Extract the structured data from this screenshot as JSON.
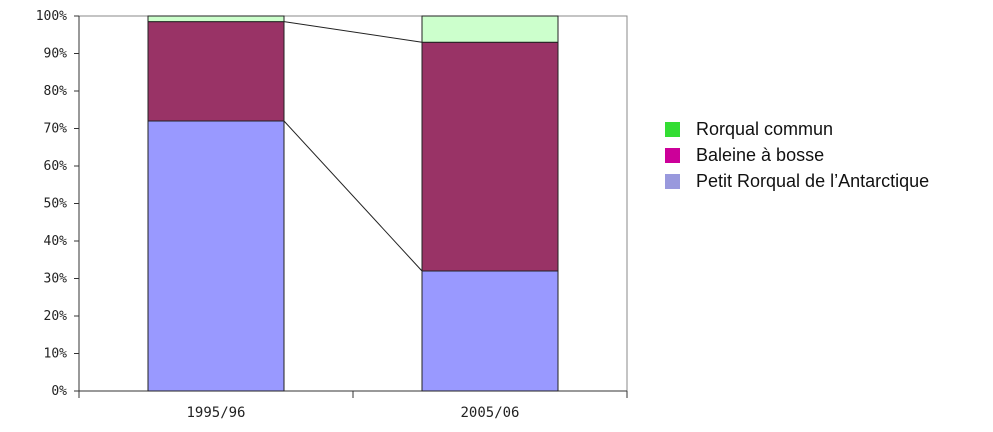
{
  "chart_data": {
    "type": "bar",
    "stacked": true,
    "percent": true,
    "categories": [
      "1995/96",
      "2005/06"
    ],
    "series": [
      {
        "name": "Petit Rorqual de l’Antarctique",
        "color": "#9999ff",
        "values": [
          72,
          32
        ]
      },
      {
        "name": "Baleine à bosse",
        "color": "#993366",
        "values": [
          26.5,
          61
        ]
      },
      {
        "name": "Rorqual commun",
        "color": "#ccffcc",
        "values": [
          1.5,
          7
        ]
      }
    ],
    "legend_colors": [
      "#33dd33",
      "#cc0099",
      "#9999dd"
    ],
    "yticks": [
      "0%",
      "10%",
      "20%",
      "30%",
      "40%",
      "50%",
      "60%",
      "70%",
      "80%",
      "90%",
      "100%"
    ],
    "ylim": [
      0,
      100
    ],
    "legend_position": "right",
    "connector_lines": true
  }
}
